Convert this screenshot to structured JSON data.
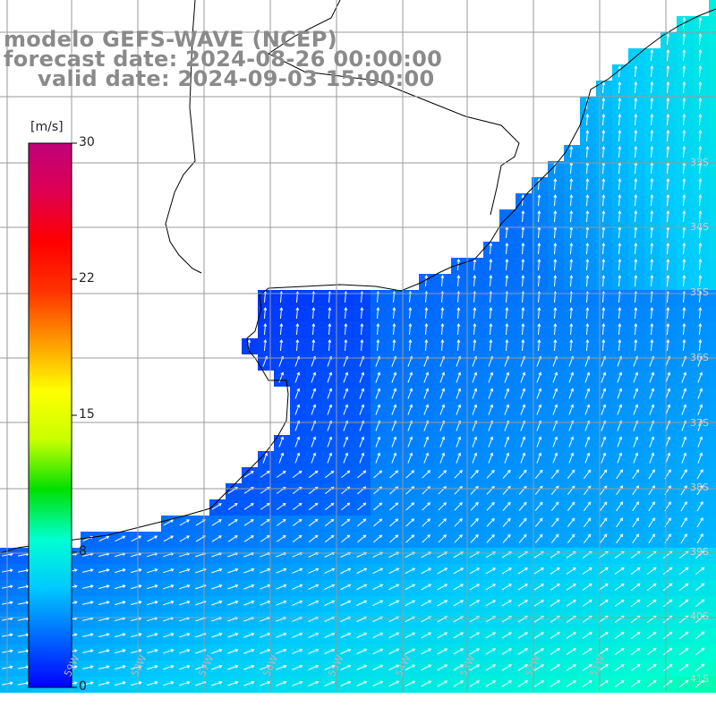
{
  "title": {
    "line1": "modelo GEFS-WAVE (NCEP)",
    "line2": "forecast date: 2024-08-26 00:00:00",
    "line3": "valid date: 2024-09-03 15:00:00"
  },
  "colorbar": {
    "unit": "[m/s]",
    "ticks": [
      "30",
      "22",
      "15",
      "8",
      "0"
    ],
    "min": 0,
    "max": 30,
    "colors": [
      "#0000ff",
      "#0066ff",
      "#00c8ff",
      "#00ffd0",
      "#00e000",
      "#c8ff00",
      "#ffff00",
      "#ff9900",
      "#ff3300",
      "#ff0000",
      "#e00050",
      "#c0007a"
    ]
  },
  "map": {
    "background": "#ffffff",
    "land_color": "#ffffff",
    "coast_color": "#000000",
    "grid_color": "#9a9a9a",
    "wind_arrow_color": "#ffffff",
    "lon_labels": [
      "59W",
      "58W",
      "57W",
      "56W",
      "55W",
      "54W",
      "53W",
      "52W",
      "51W"
    ],
    "lat_labels": [
      "33S",
      "34S",
      "35S",
      "36S",
      "37S",
      "38S",
      "39S",
      "40S",
      "41S"
    ]
  }
}
